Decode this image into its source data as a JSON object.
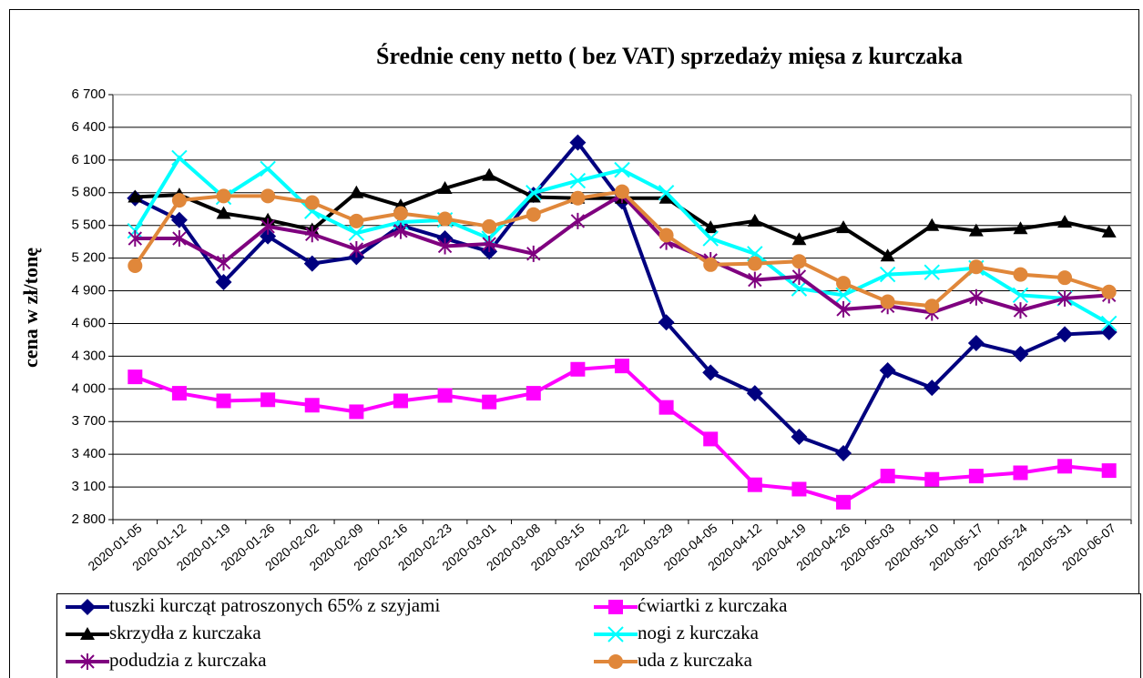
{
  "chart_data": {
    "type": "line",
    "title": "Średnie ceny netto ( bez VAT) sprzedaży mięsa z kurczaka",
    "y_label": "cena w zł/tonę",
    "categories": [
      "2020-01-05",
      "2020-01-12",
      "2020-01-19",
      "2020-01-26",
      "2020-02-02",
      "2020-02-09",
      "2020-02-16",
      "2020-02-23",
      "2020-03-01",
      "2020-03-08",
      "2020-03-15",
      "2020-03-22",
      "2020-03-29",
      "2020-04-05",
      "2020-04-12",
      "2020-04-19",
      "2020-04-26",
      "2020-05-03",
      "2020-05-10",
      "2020-05-17",
      "2020-05-24",
      "2020-05-31",
      "2020-06-07"
    ],
    "ylim": [
      2800,
      6700
    ],
    "yticks": [
      {
        "value": 2800,
        "label": "2 800"
      },
      {
        "value": 3100,
        "label": "3 100"
      },
      {
        "value": 3400,
        "label": "3 400"
      },
      {
        "value": 3700,
        "label": "3 700"
      },
      {
        "value": 4000,
        "label": "4 000"
      },
      {
        "value": 4300,
        "label": "4 300"
      },
      {
        "value": 4600,
        "label": "4 600"
      },
      {
        "value": 4900,
        "label": "4 900"
      },
      {
        "value": 5200,
        "label": "5 200"
      },
      {
        "value": 5500,
        "label": "5 500"
      },
      {
        "value": 5800,
        "label": "5 800"
      },
      {
        "value": 6100,
        "label": "6 100"
      },
      {
        "value": 6400,
        "label": "6 400"
      },
      {
        "value": 6700,
        "label": "6 700"
      }
    ],
    "grid": true,
    "series": [
      {
        "name": "tuszki kurcząt patroszonych 65% z szyjami",
        "color": "#00007f",
        "marker": "diamond",
        "values": [
          5750,
          5550,
          4980,
          5400,
          5150,
          5210,
          5500,
          5380,
          5260,
          5780,
          6260,
          5720,
          4610,
          4150,
          3960,
          3560,
          3410,
          4170,
          4010,
          4420,
          4320,
          4500,
          4520
        ]
      },
      {
        "name": "ćwiartki z kurczaka",
        "color": "#ff00ff",
        "marker": "square",
        "values": [
          4110,
          3960,
          3890,
          3900,
          3850,
          3790,
          3890,
          3940,
          3880,
          3960,
          4180,
          4210,
          3830,
          3540,
          3120,
          3080,
          2960,
          3200,
          3170,
          3200,
          3230,
          3290,
          3250
        ]
      },
      {
        "name": "skrzydła z kurczaka",
        "color": "#000000",
        "marker": "triangle",
        "values": [
          5760,
          5780,
          5610,
          5550,
          5460,
          5800,
          5680,
          5840,
          5960,
          5760,
          5750,
          5750,
          5750,
          5480,
          5540,
          5370,
          5480,
          5220,
          5500,
          5450,
          5470,
          5530,
          5440
        ]
      },
      {
        "name": "nogi z kurczaka",
        "color": "#00ffff",
        "marker": "x",
        "values": [
          5450,
          6120,
          5760,
          6020,
          5630,
          5430,
          5530,
          5550,
          5380,
          5800,
          5910,
          6010,
          5800,
          5380,
          5240,
          4920,
          4860,
          5050,
          5070,
          5110,
          4860,
          4830,
          4600
        ]
      },
      {
        "name": "podudzia z kurczaka",
        "color": "#7f007f",
        "marker": "star",
        "values": [
          5380,
          5380,
          5160,
          5490,
          5420,
          5280,
          5450,
          5310,
          5330,
          5240,
          5540,
          5780,
          5350,
          5180,
          5000,
          5030,
          4730,
          4760,
          4700,
          4840,
          4720,
          4830,
          4860
        ]
      },
      {
        "name": "uda z kurczaka",
        "color": "#e0873a",
        "marker": "circle",
        "values": [
          5130,
          5730,
          5770,
          5770,
          5710,
          5540,
          5610,
          5560,
          5490,
          5600,
          5750,
          5810,
          5410,
          5140,
          5150,
          5170,
          4970,
          4800,
          4760,
          5120,
          5050,
          5020,
          4890
        ]
      }
    ]
  }
}
